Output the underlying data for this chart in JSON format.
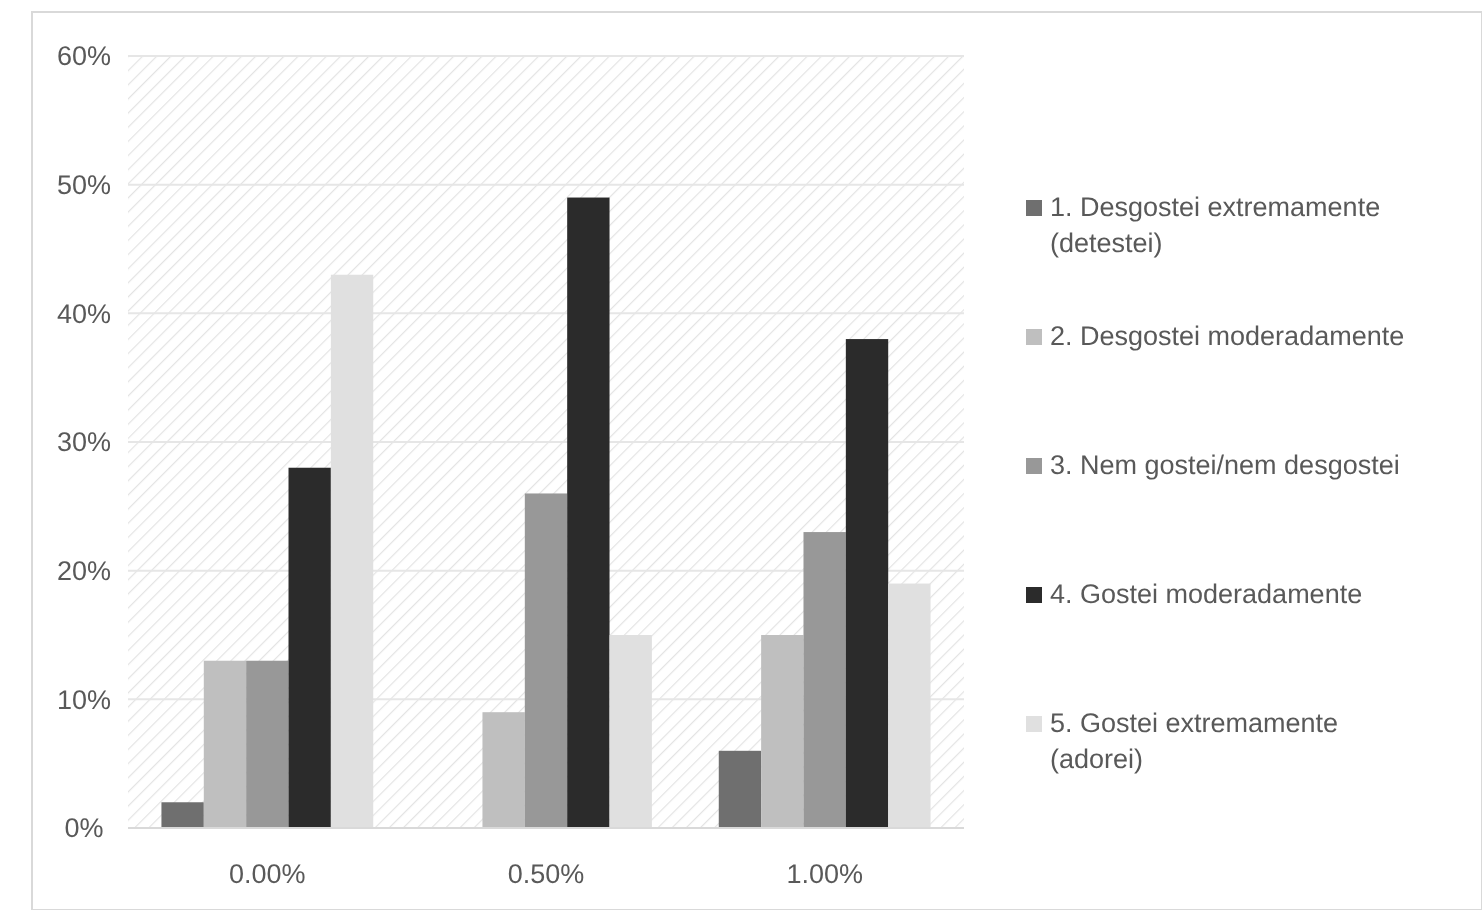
{
  "chart_data": {
    "type": "bar",
    "categories": [
      "0.00%",
      "0.50%",
      "1.00%"
    ],
    "series": [
      {
        "name": "1. Desgostei extremamente (detestei)",
        "color": "#6f6f6f",
        "values": [
          2,
          0,
          6
        ]
      },
      {
        "name": "2. Desgostei moderadamente",
        "color": "#bfbfbf",
        "values": [
          13,
          9,
          15
        ]
      },
      {
        "name": "3. Nem gostei/nem desgostei",
        "color": "#989898",
        "values": [
          13,
          26,
          23
        ]
      },
      {
        "name": "4. Gostei moderadamente",
        "color": "#2b2b2b",
        "values": [
          28,
          49,
          38
        ]
      },
      {
        "name": "5. Gostei extremamente (adorei)",
        "color": "#e0e0e0",
        "values": [
          43,
          15,
          19
        ]
      }
    ],
    "ylim": [
      0,
      60
    ],
    "yticks": [
      {
        "value": 0,
        "label": "0%"
      },
      {
        "value": 10,
        "label": "10%"
      },
      {
        "value": 20,
        "label": "20%"
      },
      {
        "value": 30,
        "label": "30%"
      },
      {
        "value": 40,
        "label": "40%"
      },
      {
        "value": 50,
        "label": "50%"
      },
      {
        "value": 60,
        "label": "60%"
      }
    ],
    "grid": "y",
    "legend": "right"
  }
}
